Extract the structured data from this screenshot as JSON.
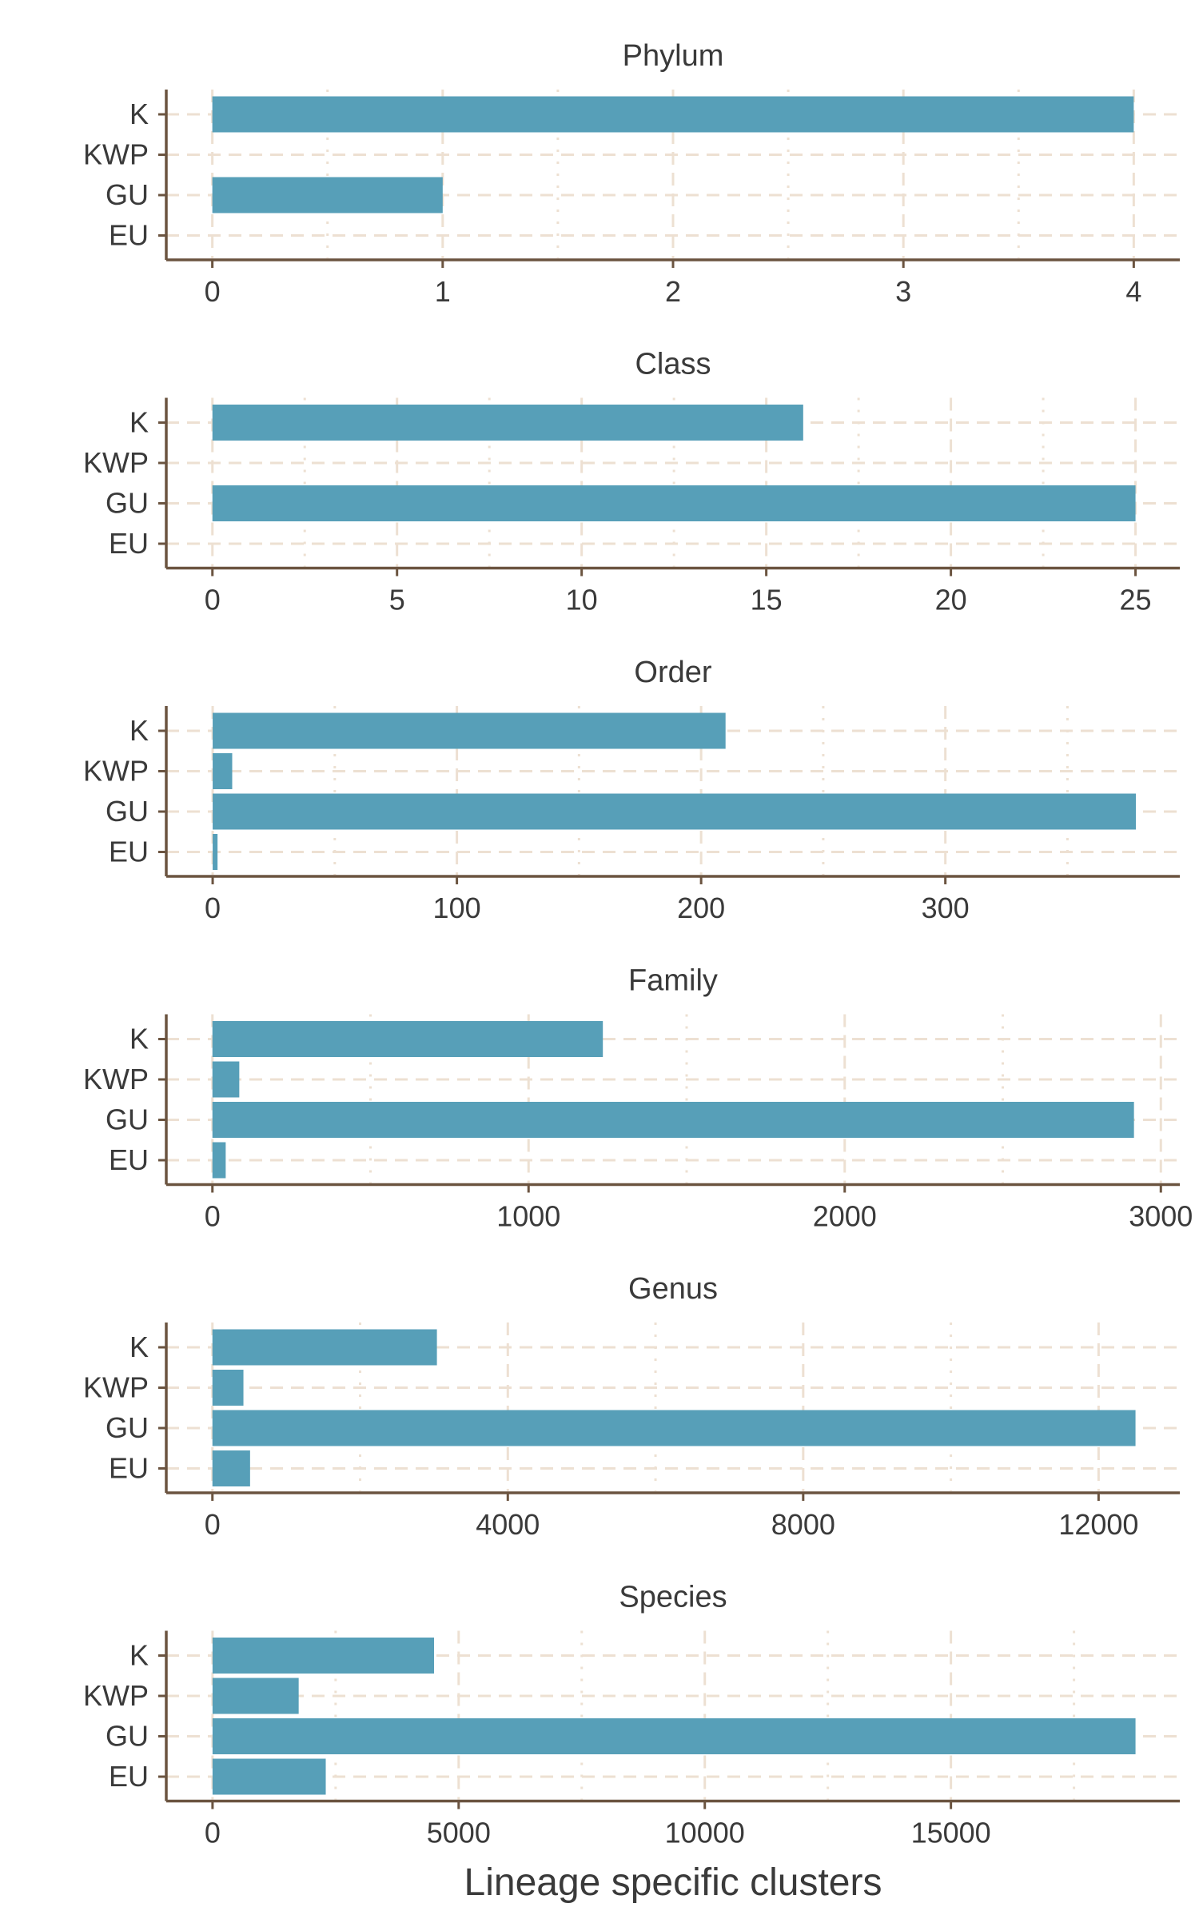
{
  "chart_data": {
    "type": "bar",
    "orientation": "horizontal",
    "xlabel": "Lineage specific clusters",
    "categories": [
      "K",
      "KWP",
      "GU",
      "EU"
    ],
    "colors": {
      "bar": "#579fb8",
      "axis": "#6b5440",
      "grid": "#ede0d2",
      "text": "#3a3a3a"
    },
    "grid": true,
    "panels": [
      {
        "title": "Phylum",
        "values": [
          4,
          0,
          1,
          0
        ],
        "xlim": [
          -0.2,
          4.2
        ],
        "ticks": [
          0,
          1,
          2,
          3,
          4
        ],
        "tick_labels": [
          "0",
          "1",
          "2",
          "3",
          "4"
        ]
      },
      {
        "title": "Class",
        "values": [
          16,
          0,
          25,
          0
        ],
        "xlim": [
          -1.25,
          26.2
        ],
        "ticks": [
          0,
          5,
          10,
          15,
          20,
          25
        ],
        "tick_labels": [
          "0",
          "5",
          "10",
          "15",
          "20",
          "25"
        ]
      },
      {
        "title": "Order",
        "values": [
          210,
          8,
          378,
          2
        ],
        "xlim": [
          -19,
          396
        ],
        "ticks": [
          0,
          100,
          200,
          300
        ],
        "tick_labels": [
          "0",
          "100",
          "200",
          "300"
        ]
      },
      {
        "title": "Family",
        "values": [
          1235,
          85,
          2915,
          42
        ],
        "xlim": [
          -146,
          3060
        ],
        "ticks": [
          0,
          1000,
          2000,
          3000
        ],
        "tick_labels": [
          "0",
          "1000",
          "2000",
          "3000"
        ]
      },
      {
        "title": "Genus",
        "values": [
          3040,
          420,
          12500,
          510
        ],
        "xlim": [
          -625,
          13100
        ],
        "ticks": [
          0,
          4000,
          8000,
          12000
        ],
        "tick_labels": [
          "0",
          "4000",
          "8000",
          "12000"
        ]
      },
      {
        "title": "Species",
        "values": [
          4500,
          1750,
          18750,
          2300
        ],
        "xlim": [
          -940,
          19650
        ],
        "ticks": [
          0,
          5000,
          10000,
          15000
        ],
        "tick_labels": [
          "0",
          "5000",
          "10000",
          "15000"
        ]
      }
    ]
  }
}
